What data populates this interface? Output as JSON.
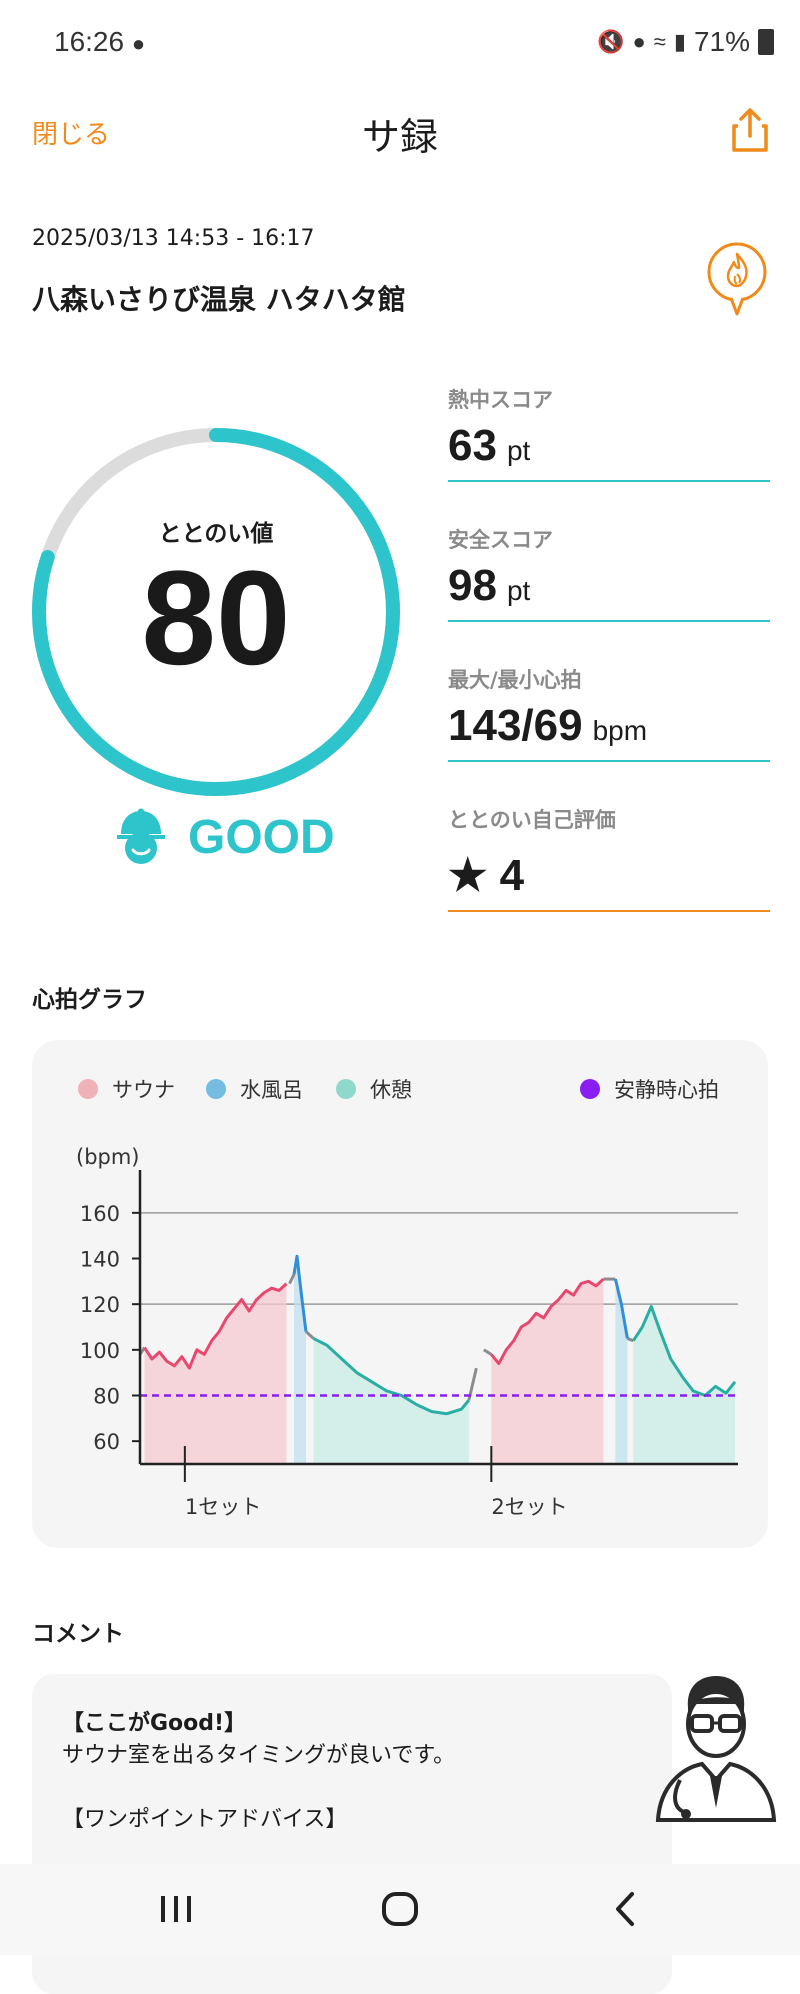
{
  "status_bar": {
    "time": "16:26",
    "battery": "71%"
  },
  "header": {
    "close_label": "閉じる",
    "title": "サ録"
  },
  "session": {
    "date_range": "2025/03/13 14:53 - 16:17",
    "venue": "八森いさりび温泉 ハタハタ館"
  },
  "score": {
    "label": "ととのい値",
    "value": "80",
    "fraction": 0.8,
    "mood": "GOOD"
  },
  "metrics": [
    {
      "label": "熱中スコア",
      "value": "63",
      "unit": "pt"
    },
    {
      "label": "安全スコア",
      "value": "98",
      "unit": "pt"
    },
    {
      "label": "最大/最小心拍",
      "value": "143/69",
      "unit": "bpm"
    },
    {
      "label": "ととのい自己評価",
      "value": "★ 4",
      "unit": ""
    }
  ],
  "heart_section_title": "心拍グラフ",
  "legend": [
    {
      "label": "サウナ",
      "color": "#efb2b8"
    },
    {
      "label": "水風呂",
      "color": "#74bce0"
    },
    {
      "label": "休憩",
      "color": "#8fd8cc"
    },
    {
      "label": "安静時心拍",
      "color": "#8a1ef0"
    }
  ],
  "chart_data": {
    "type": "line",
    "ylabel": "(bpm)",
    "yticks": [
      60,
      80,
      100,
      120,
      140,
      160
    ],
    "ylim": [
      50,
      170
    ],
    "xticks": [
      "1セット",
      "2セット"
    ],
    "resting_hr": 80,
    "series": [
      {
        "name": "サウナ",
        "color": "#e8486e",
        "values": [
          [
            0.3,
            101
          ],
          [
            0.8,
            96
          ],
          [
            1.3,
            99
          ],
          [
            1.8,
            95
          ],
          [
            2.3,
            93
          ],
          [
            2.8,
            97
          ],
          [
            3.3,
            92
          ],
          [
            3.8,
            100
          ],
          [
            4.3,
            98
          ],
          [
            4.8,
            104
          ],
          [
            5.3,
            108
          ],
          [
            5.8,
            114
          ],
          [
            6.3,
            118
          ],
          [
            6.8,
            122
          ],
          [
            7.3,
            117
          ],
          [
            7.8,
            122
          ],
          [
            8.3,
            125
          ],
          [
            8.8,
            127
          ],
          [
            9.3,
            126
          ],
          [
            9.8,
            129
          ]
        ]
      },
      {
        "name": "水風呂",
        "color": "#2f8fd8",
        "values": [
          [
            10.3,
            133
          ],
          [
            10.5,
            141
          ],
          [
            10.8,
            124
          ],
          [
            11.1,
            108
          ]
        ]
      },
      {
        "name": "休憩",
        "color": "#2aaea4",
        "values": [
          [
            11.6,
            105
          ],
          [
            12.5,
            102
          ],
          [
            13.5,
            96
          ],
          [
            14.5,
            90
          ],
          [
            15.5,
            86
          ],
          [
            16.5,
            82
          ],
          [
            17.5,
            80
          ],
          [
            18.5,
            76
          ],
          [
            19.5,
            73
          ],
          [
            20.5,
            72
          ],
          [
            21.5,
            74
          ],
          [
            22.0,
            78
          ]
        ]
      },
      {
        "name": "サウナ",
        "color": "#e8486e",
        "values": [
          [
            23.5,
            98
          ],
          [
            24.0,
            94
          ],
          [
            24.5,
            100
          ],
          [
            25.0,
            104
          ],
          [
            25.5,
            110
          ],
          [
            26.0,
            112
          ],
          [
            26.5,
            116
          ],
          [
            27.0,
            114
          ],
          [
            27.5,
            119
          ],
          [
            28.0,
            122
          ],
          [
            28.5,
            126
          ],
          [
            29.0,
            124
          ],
          [
            29.5,
            129
          ],
          [
            30.0,
            130
          ],
          [
            30.5,
            128
          ],
          [
            31.0,
            131
          ]
        ]
      },
      {
        "name": "水風呂",
        "color": "#2f8fd8",
        "values": [
          [
            31.8,
            131
          ],
          [
            32.2,
            120
          ],
          [
            32.6,
            105
          ]
        ]
      },
      {
        "name": "休憩",
        "color": "#2aaea4",
        "values": [
          [
            33.0,
            104
          ],
          [
            33.6,
            110
          ],
          [
            34.2,
            119
          ],
          [
            34.8,
            108
          ],
          [
            35.5,
            96
          ],
          [
            36.3,
            88
          ],
          [
            37.0,
            82
          ],
          [
            37.8,
            80
          ],
          [
            38.5,
            84
          ],
          [
            39.2,
            81
          ],
          [
            39.8,
            86
          ]
        ]
      }
    ],
    "gap_series": {
      "color": "#8c8c8c",
      "values": [
        [
          0,
          98
        ],
        [
          0.3,
          101
        ],
        [
          10.0,
          129
        ],
        [
          10.3,
          133
        ],
        [
          11.1,
          108
        ],
        [
          11.6,
          105
        ],
        [
          22.0,
          78
        ],
        [
          22.5,
          92
        ],
        [
          23.0,
          100
        ],
        [
          23.5,
          98
        ],
        [
          31.0,
          131
        ],
        [
          31.8,
          131
        ],
        [
          32.6,
          105
        ],
        [
          33.0,
          104
        ]
      ]
    },
    "set_positions": [
      3,
      23.5
    ],
    "xlim": [
      0,
      40
    ]
  },
  "comment_section_title": "コメント",
  "comment": {
    "good_head": "【ここがGood!】",
    "good_body": "サウナ室を出るタイミングが良いです。",
    "advice_head": "【ワンポイントアドバイス】"
  }
}
